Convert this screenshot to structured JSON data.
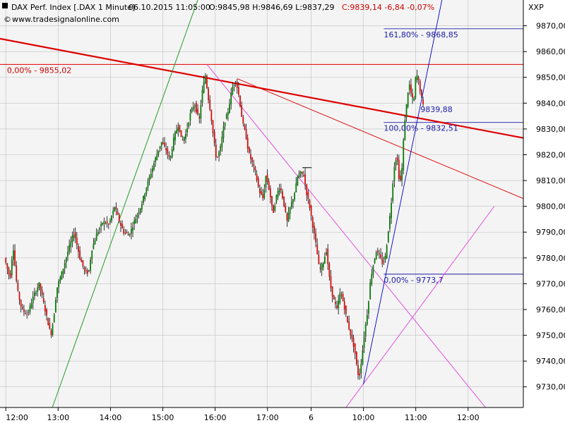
{
  "header": {
    "symbol": "DAX Perf. Index [.DAX  1 Minute]",
    "datetime": "06.10.2015 11:05:00",
    "ohl": "O:9845,98 H:9846,69 L:9837,29",
    "close_change": "C:9839,14 -6,84 -0,07%",
    "website": "www.tradesignalonline.com",
    "corner_label": "XXP"
  },
  "colors": {
    "background": "#ffffff",
    "plot_bg": "#f4f4f4",
    "grid": "#c0c0c0",
    "up_candle": "#0a7a0a",
    "down_candle": "#d01010",
    "wick": "#000000",
    "fib_line": "#1a1aa8",
    "trend_red": "#dd0000",
    "trend_green": "#109010",
    "trend_magenta": "#e040e0",
    "trend_blue": "#0000cc"
  },
  "chart_data": {
    "type": "candlestick",
    "yaxis_ticks": [
      "9870,00",
      "9860,00",
      "9850,00",
      "9840,00",
      "9830,00",
      "9820,00",
      "9810,00",
      "9800,00",
      "9790,00",
      "9780,00",
      "9770,00",
      "9760,00",
      "9750,00",
      "9740,00",
      "9730,00"
    ],
    "ylim": [
      9722,
      9880
    ],
    "xaxis_ticks": [
      {
        "label": "12:00",
        "x": 0
      },
      {
        "label": "13:00",
        "x": 90
      },
      {
        "label": "14:00",
        "x": 180
      },
      {
        "label": "15:00",
        "x": 270
      },
      {
        "label": "16:00",
        "x": 360
      },
      {
        "label": "17:00",
        "x": 450
      },
      {
        "label": "6",
        "x": 525
      },
      {
        "label": "10:00",
        "x": 615
      },
      {
        "label": "11:00",
        "x": 705
      },
      {
        "label": "12:00",
        "x": 795
      }
    ],
    "xlim": [
      -10,
      890
    ],
    "price_path": [
      [
        0,
        9780
      ],
      [
        10,
        9772
      ],
      [
        15,
        9785
      ],
      [
        22,
        9768
      ],
      [
        30,
        9760
      ],
      [
        40,
        9758
      ],
      [
        50,
        9765
      ],
      [
        60,
        9770
      ],
      [
        70,
        9760
      ],
      [
        80,
        9750
      ],
      [
        85,
        9757
      ],
      [
        90,
        9768
      ],
      [
        100,
        9775
      ],
      [
        110,
        9783
      ],
      [
        120,
        9790
      ],
      [
        130,
        9780
      ],
      [
        138,
        9775
      ],
      [
        145,
        9774
      ],
      [
        150,
        9783
      ],
      [
        160,
        9790
      ],
      [
        170,
        9794
      ],
      [
        180,
        9793
      ],
      [
        190,
        9800
      ],
      [
        198,
        9794
      ],
      [
        205,
        9790
      ],
      [
        215,
        9789
      ],
      [
        225,
        9795
      ],
      [
        235,
        9800
      ],
      [
        245,
        9808
      ],
      [
        255,
        9815
      ],
      [
        262,
        9820
      ],
      [
        270,
        9825
      ],
      [
        278,
        9822
      ],
      [
        285,
        9818
      ],
      [
        292,
        9827
      ],
      [
        300,
        9832
      ],
      [
        305,
        9825
      ],
      [
        312,
        9828
      ],
      [
        320,
        9836
      ],
      [
        327,
        9840
      ],
      [
        335,
        9833
      ],
      [
        340,
        9844
      ],
      [
        346,
        9851
      ],
      [
        350,
        9843
      ],
      [
        355,
        9836
      ],
      [
        360,
        9826
      ],
      [
        365,
        9818
      ],
      [
        372,
        9823
      ],
      [
        378,
        9832
      ],
      [
        385,
        9837
      ],
      [
        392,
        9846
      ],
      [
        398,
        9849
      ],
      [
        404,
        9842
      ],
      [
        410,
        9832
      ],
      [
        415,
        9828
      ],
      [
        420,
        9821
      ],
      [
        426,
        9817
      ],
      [
        432,
        9813
      ],
      [
        438,
        9806
      ],
      [
        445,
        9803
      ],
      [
        450,
        9812
      ],
      [
        456,
        9806
      ],
      [
        462,
        9797
      ],
      [
        468,
        9804
      ],
      [
        474,
        9808
      ],
      [
        480,
        9802
      ],
      [
        486,
        9794
      ],
      [
        492,
        9800
      ],
      [
        498,
        9804
      ],
      [
        505,
        9812
      ],
      [
        510,
        9813
      ],
      [
        515,
        9812
      ],
      [
        520,
        9805
      ],
      [
        525,
        9800
      ],
      [
        530,
        9793
      ],
      [
        536,
        9785
      ],
      [
        542,
        9775
      ],
      [
        548,
        9778
      ],
      [
        554,
        9783
      ],
      [
        560,
        9770
      ],
      [
        566,
        9764
      ],
      [
        572,
        9760
      ],
      [
        578,
        9767
      ],
      [
        584,
        9762
      ],
      [
        590,
        9755
      ],
      [
        596,
        9750
      ],
      [
        602,
        9745
      ],
      [
        606,
        9738
      ],
      [
        610,
        9733
      ],
      [
        615,
        9742
      ],
      [
        620,
        9752
      ],
      [
        625,
        9760
      ],
      [
        630,
        9772
      ],
      [
        635,
        9778
      ],
      [
        640,
        9783
      ],
      [
        645,
        9781
      ],
      [
        650,
        9778
      ],
      [
        655,
        9780
      ],
      [
        660,
        9790
      ],
      [
        665,
        9800
      ],
      [
        670,
        9815
      ],
      [
        675,
        9820
      ],
      [
        680,
        9808
      ],
      [
        684,
        9815
      ],
      [
        688,
        9832
      ],
      [
        692,
        9840
      ],
      [
        696,
        9848
      ],
      [
        700,
        9843
      ],
      [
        704,
        9840
      ],
      [
        708,
        9852
      ],
      [
        712,
        9849
      ],
      [
        716,
        9844
      ],
      [
        720,
        9839
      ]
    ],
    "annotations": [
      {
        "text": "0,00% - 9855,02",
        "color": "red",
        "y": 9855.02,
        "x": 2
      },
      {
        "text": "161,80% - 9868,85",
        "color": "blue",
        "y": 9868.85,
        "x": 650
      },
      {
        "text": "100,00% - 9832,51",
        "color": "blue",
        "y": 9832.51,
        "x": 650
      },
      {
        "text": "0,00% - 9773,7",
        "color": "blue",
        "y": 9773.7,
        "x": 650
      },
      {
        "text": "9839,88",
        "color": "blue",
        "y": 9839.88,
        "x": 713
      }
    ]
  }
}
